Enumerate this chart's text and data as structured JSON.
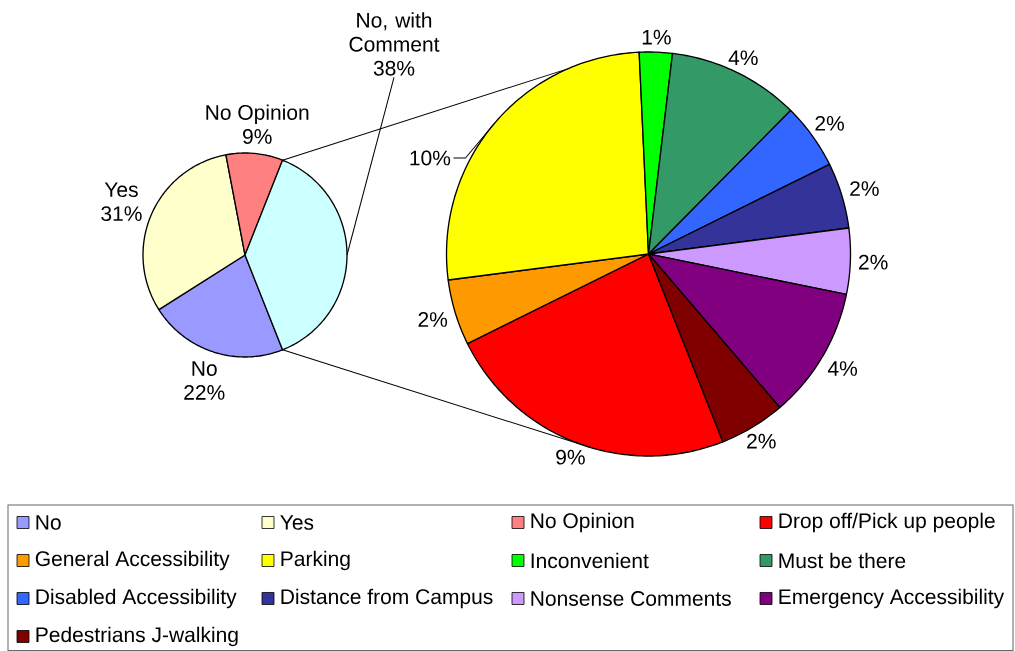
{
  "chart_data": [
    {
      "type": "pie",
      "categories": [
        "No",
        "Yes",
        "No Opinion",
        "No, with Comment"
      ],
      "values": [
        22,
        31,
        9,
        38
      ],
      "value_labels": [
        "22%",
        "31%",
        "9%",
        "38%"
      ],
      "colors": [
        "#9999ff",
        "#ffffcc",
        "#ff8080",
        "#ccffff"
      ],
      "legend": "bottom"
    },
    {
      "type": "pie",
      "categories": [
        "Drop off/Pick up people",
        "General Accessibility",
        "Parking",
        "Inconvenient",
        "Must be there",
        "Disabled Accessibility",
        "Distance from Campus",
        "Nonsense Comments",
        "Emergency Accessibility",
        "Pedestrians J-walking"
      ],
      "values": [
        9,
        2,
        10,
        1,
        4,
        2,
        2,
        2,
        4,
        2
      ],
      "value_labels": [
        "9%",
        "2%",
        "10%",
        "1%",
        "4%",
        "2%",
        "2%",
        "2%",
        "4%",
        "2%"
      ],
      "colors": [
        "#ff0000",
        "#ff9900",
        "#ffff00",
        "#00ff00",
        "#339966",
        "#3366ff",
        "#333399",
        "#cc99ff",
        "#800080",
        "#800000"
      ],
      "legend": "bottom"
    }
  ]
}
